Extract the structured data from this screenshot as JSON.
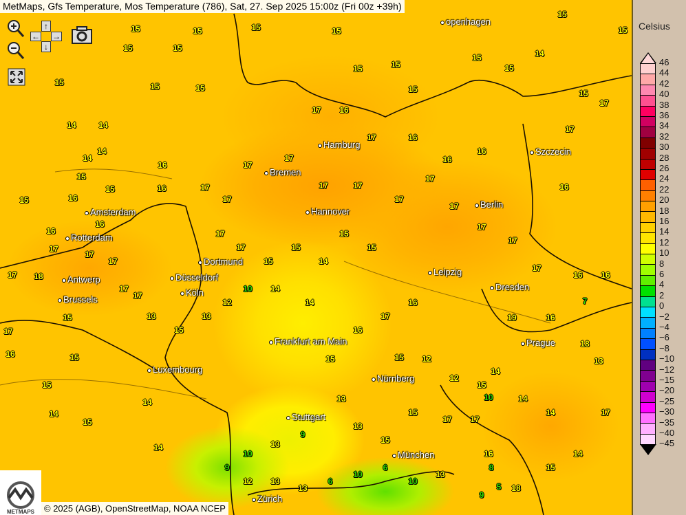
{
  "title": "MetMaps, Gfs Temperature, Mos Temperature (786), Sat, 27. Sep 2025 15:00z (Fri 00z +39h)",
  "controls": {
    "zoom_in": "zoom-in",
    "zoom_out": "zoom-out",
    "pan": "pan-arrows",
    "screenshot": "camera",
    "fullscreen": "expand"
  },
  "legend": {
    "title": "Celsius",
    "labels": [
      "46",
      "44",
      "42",
      "40",
      "38",
      "36",
      "34",
      "32",
      "30",
      "28",
      "26",
      "24",
      "22",
      "20",
      "18",
      "16",
      "14",
      "12",
      "10",
      "8",
      "6",
      "4",
      "2",
      "0",
      "−2",
      "−4",
      "−6",
      "−8",
      "−10",
      "−12",
      "−15",
      "−20",
      "−25",
      "−30",
      "−35",
      "−40",
      "−45"
    ],
    "colors": [
      "#ffd0d0",
      "#ffa8a8",
      "#ff88b0",
      "#ff5090",
      "#ff0060",
      "#d00060",
      "#a00040",
      "#800000",
      "#a00000",
      "#c00000",
      "#e00000",
      "#ff6000",
      "#ff8000",
      "#ffa000",
      "#ffb800",
      "#ffd000",
      "#ffe400",
      "#ffff00",
      "#d0ff00",
      "#a0ff00",
      "#60f000",
      "#00e000",
      "#00e090",
      "#00e0ff",
      "#00b0ff",
      "#0080ff",
      "#0050ff",
      "#0030c0",
      "#600080",
      "#800090",
      "#a000b0",
      "#d000d0",
      "#ff00ff",
      "#ff70ff",
      "#ffb0ff",
      "#ffd8ff"
    ]
  },
  "cities": [
    "openhagen",
    "Szczecin",
    "Hamburg",
    "Bremen",
    "Berlin",
    "Amsterdam",
    "Hannover",
    "Rotterdam",
    "Antwerp",
    "Dortmund",
    "Düsseldorf",
    "Brussels",
    "Köln",
    "Leipzig",
    "Dresden",
    "Prague",
    "Frankfurt am Main",
    "Luxembourg",
    "Nürnberg",
    "Stuttgart",
    "München",
    "Zürich"
  ],
  "temperatures": [
    15,
    15,
    15,
    15,
    15,
    15,
    15,
    15,
    15,
    14,
    14,
    14,
    14,
    15,
    15,
    15,
    16,
    16,
    16,
    16,
    16,
    17,
    17,
    18,
    17,
    17,
    15,
    17,
    16,
    15,
    15,
    14,
    14,
    15,
    14,
    17,
    17,
    17,
    17,
    17,
    17,
    17,
    17,
    17,
    17,
    17,
    17,
    16,
    16,
    16,
    17,
    17,
    15,
    15,
    15,
    15,
    14,
    15,
    15,
    15,
    15,
    17,
    16,
    17,
    16,
    16,
    16,
    19,
    16,
    18,
    13,
    17,
    14,
    15,
    18,
    16,
    17,
    17,
    15,
    15,
    13,
    13,
    9,
    13,
    10,
    9,
    12,
    13,
    13,
    6,
    10,
    6,
    10,
    13,
    9,
    5,
    8,
    10,
    7,
    15,
    16,
    17,
    16,
    14,
    14,
    10,
    12,
    13,
    15,
    13,
    17,
    17,
    15,
    12,
    12,
    15,
    14,
    14,
    14,
    15,
    15,
    14,
    15,
    15,
    17,
    17
  ],
  "copyright": "© 2025 (AGB), OpenStreetMap, NOAA NCEP",
  "logo_text": "METMAPS"
}
